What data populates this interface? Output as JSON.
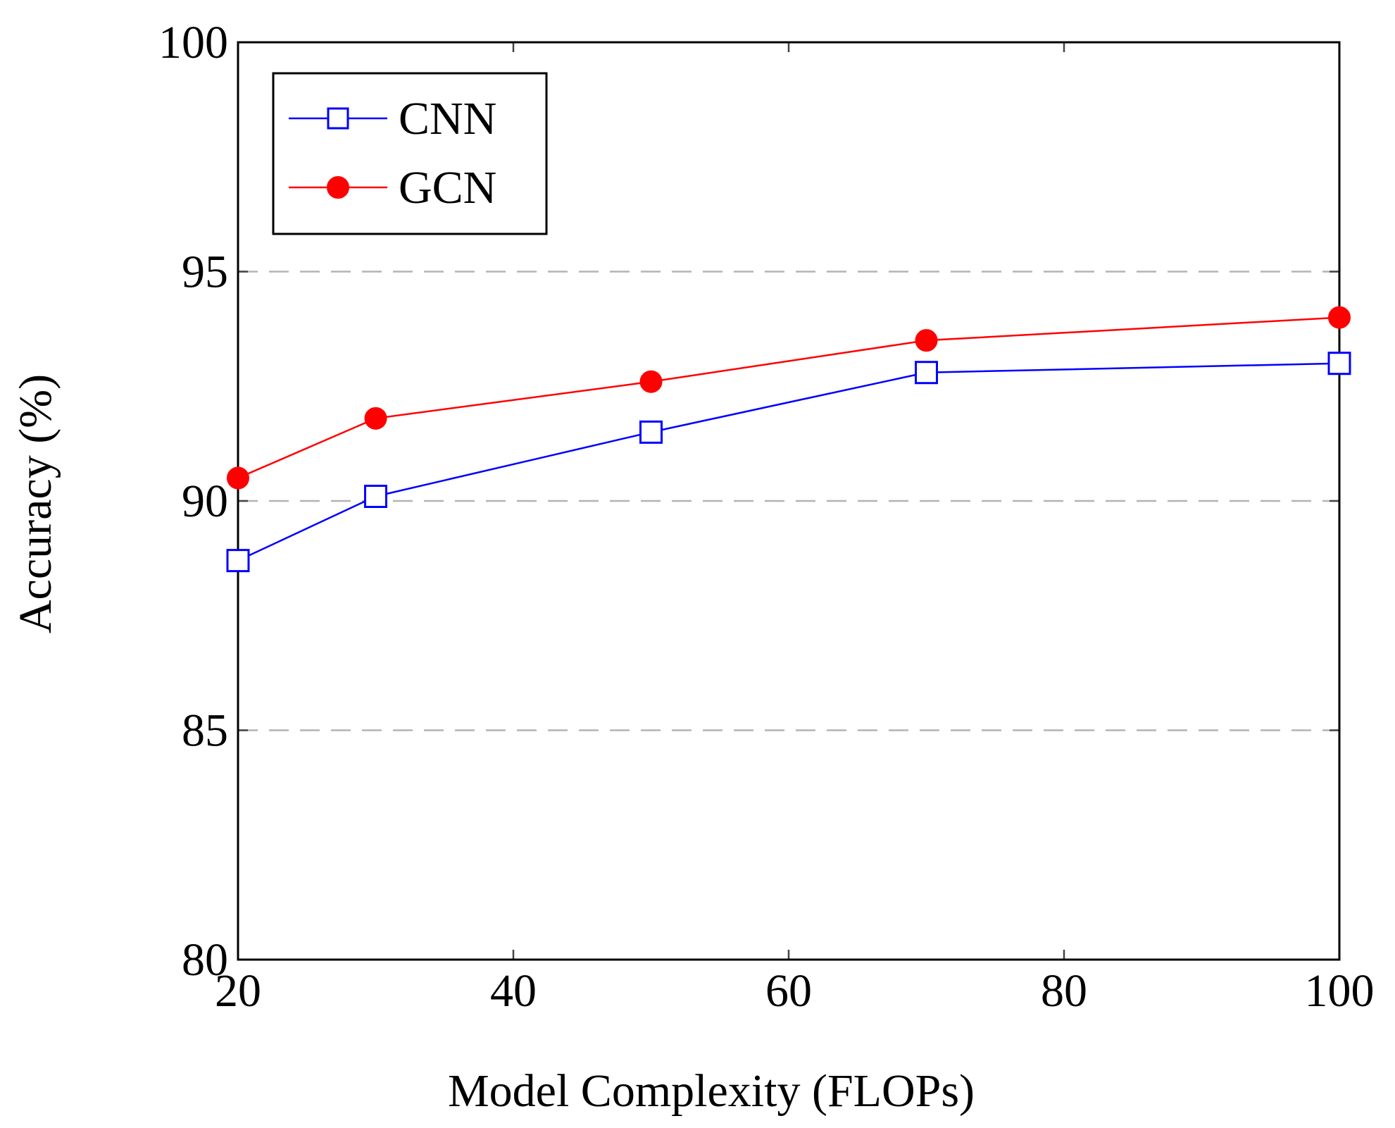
{
  "chart_data": {
    "type": "line",
    "title": "",
    "xlabel": "Model Complexity (FLOPs)",
    "ylabel": "Accuracy (%)",
    "xlim": [
      20,
      100
    ],
    "ylim": [
      80,
      100
    ],
    "xticks": [
      20,
      40,
      60,
      80,
      100
    ],
    "yticks": [
      80,
      85,
      90,
      95,
      100
    ],
    "xtick_labels": [
      "20",
      "40",
      "60",
      "80",
      "100"
    ],
    "ytick_labels": [
      "80",
      "85",
      "90",
      "95",
      "100"
    ],
    "grid": "horizontal dashed at 85, 90, 95",
    "legend_position": "top-left",
    "series": [
      {
        "name": "CNN",
        "color": "#0000ff",
        "marker": "open-square",
        "x": [
          20,
          30,
          50,
          70,
          100
        ],
        "y": [
          88.7,
          90.1,
          91.5,
          92.8,
          93.0
        ]
      },
      {
        "name": "GCN",
        "color": "#ff0000",
        "marker": "filled-circle",
        "x": [
          20,
          30,
          50,
          70,
          100
        ],
        "y": [
          90.5,
          91.8,
          92.6,
          93.5,
          94.0
        ]
      }
    ]
  }
}
